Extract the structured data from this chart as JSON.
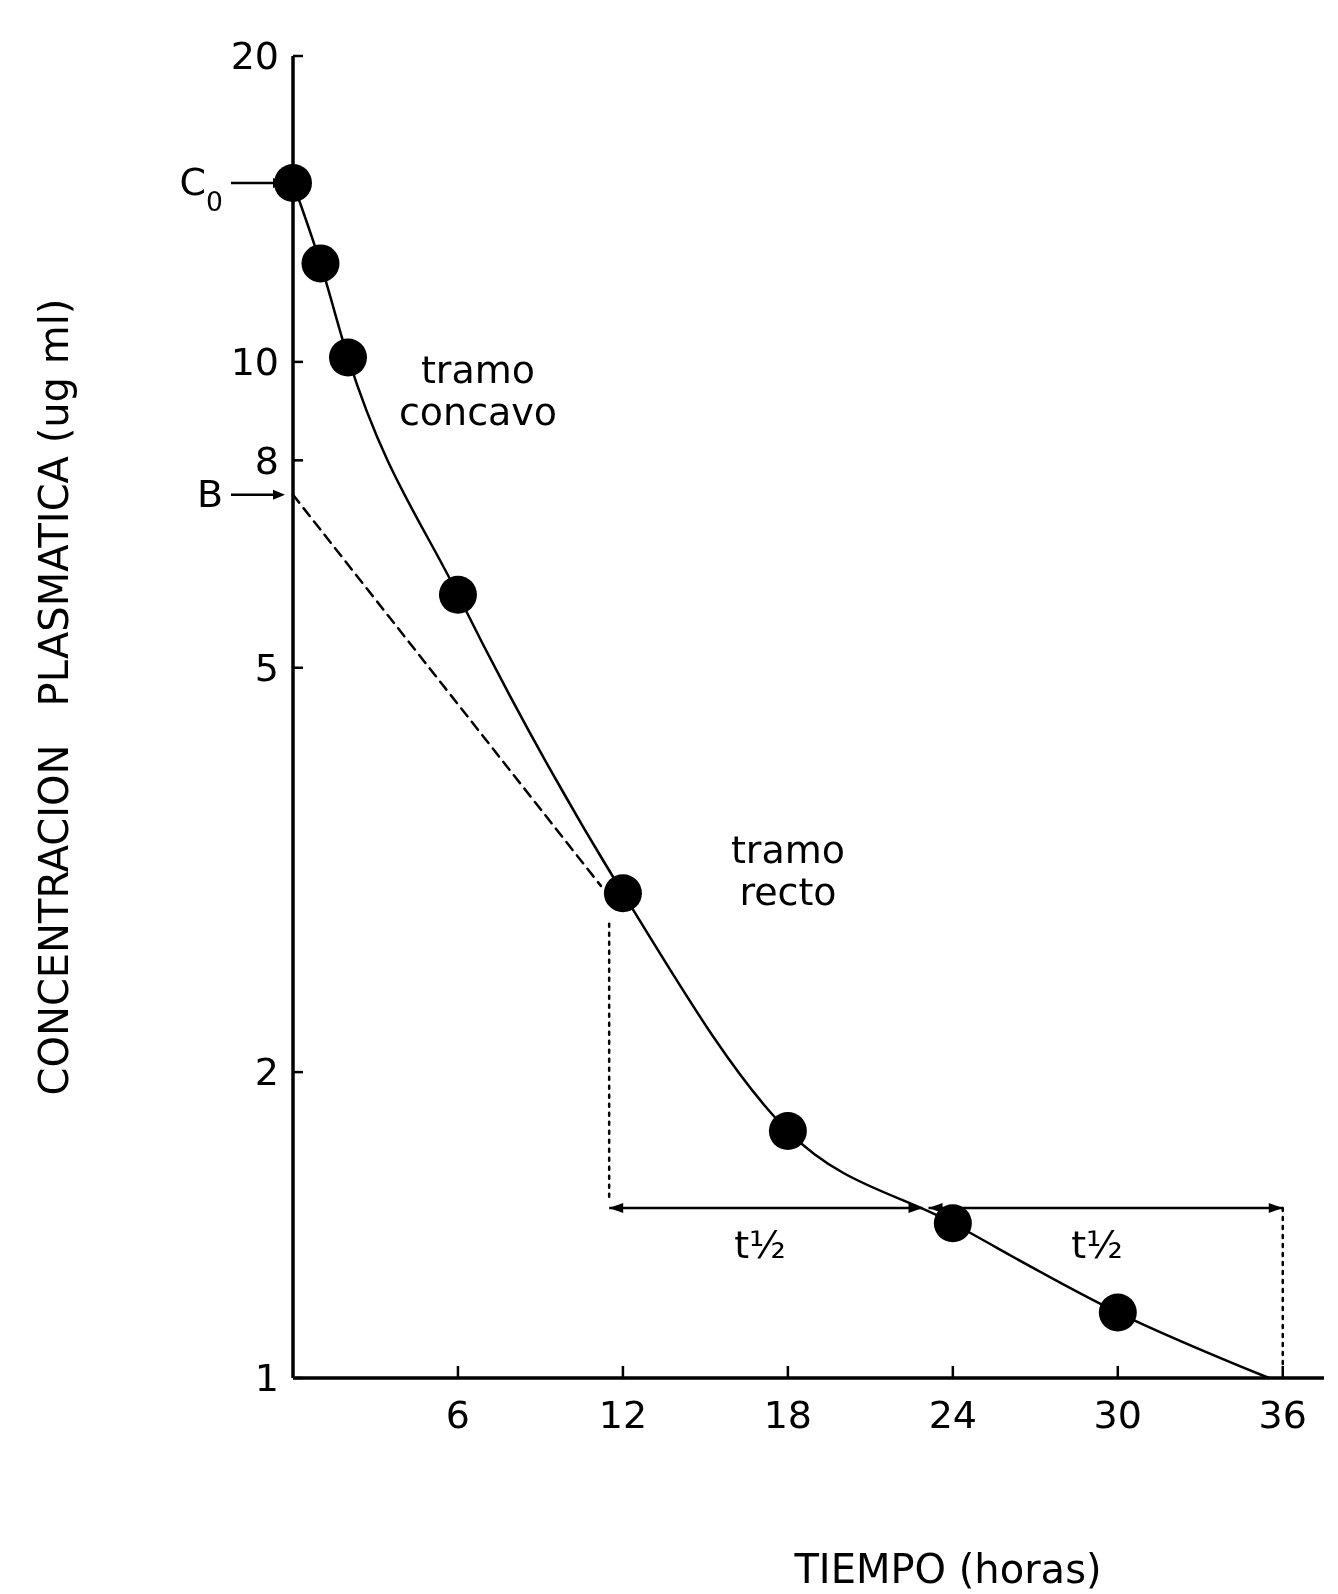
{
  "chart_data": {
    "type": "scatter",
    "xlabel": "TIEMPO (horas)",
    "ylabel": "CONCENTRACION   PLASMATICA (ug ml)",
    "log": "y",
    "xlim": [
      0,
      37.5
    ],
    "ylim": [
      1,
      20
    ],
    "xticks": [
      6,
      12,
      18,
      24,
      30,
      36
    ],
    "yticks": [
      1,
      2,
      5,
      8,
      10,
      20
    ],
    "grid": false,
    "series": [
      {
        "type": "line",
        "color": "#000000",
        "line_style": "solid",
        "x": [
          0,
          1,
          2,
          6,
          12,
          18,
          24,
          30,
          35.5
        ],
        "values": [
          15,
          12.5,
          10.1,
          5.9,
          3.0,
          1.75,
          1.42,
          1.16,
          1
        ]
      },
      {
        "type": "line",
        "color": "#000000",
        "line_style": "dashed",
        "x": [
          0,
          11.2
        ],
        "values": [
          7.4,
          3.05
        ]
      },
      {
        "type": "line",
        "color": "#000000",
        "line_style": "dotted",
        "x": [
          11.5,
          11.5
        ],
        "values": [
          2.8,
          1.5
        ]
      },
      {
        "type": "line",
        "color": "#000000",
        "line_style": "dotted",
        "x": [
          36,
          36
        ],
        "values": [
          1.47,
          1.03
        ]
      },
      {
        "color": "#000000",
        "marker": "circle",
        "x": [
          0,
          1,
          2,
          6,
          12,
          18,
          24,
          30
        ],
        "values": [
          15,
          12.5,
          10.1,
          5.9,
          3.0,
          1.75,
          1.42,
          1.16
        ]
      }
    ],
    "annotations": [
      {
        "text": "C$_{0}$",
        "x": 0,
        "y": 15
      },
      {
        "text": "B",
        "x": 0,
        "y": 7.4
      },
      "tramo concavo",
      "tramo recto",
      "t½",
      "t½"
    ]
  }
}
